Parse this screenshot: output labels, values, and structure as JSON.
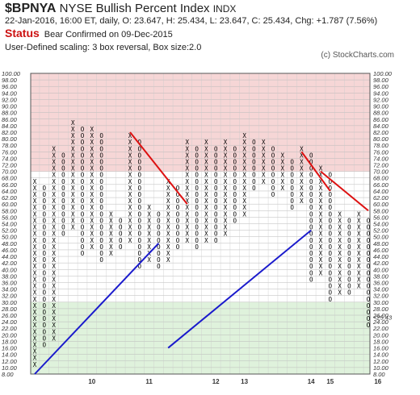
{
  "header": {
    "symbol": "$BPNYA",
    "name": "NYSE Bullish Percent Index",
    "exchange": "INDX",
    "ohlc_line": "22-Jan-2016, 16:00 ET, daily, O: 23.647, H: 25.434, L: 23.647, C: 25.434, Chg: +1.787 (7.56%)",
    "status_label": "Status",
    "status_text": "Bear Confirmed on 09-Dec-2015",
    "scaling_text": "User-Defined scaling: 3 box reversal, Box size:2.0",
    "copyright": "(c) StockCharts.com"
  },
  "colors": {
    "x_mark": "#000000",
    "o_mark": "#000000",
    "month_mark": "#cc1111",
    "upper_zone": "#f6d6d6",
    "lower_zone": "#dff2dc",
    "support_line": "#1a1acc",
    "resistance_line": "#dd1111",
    "last_price_label": "#cc1111"
  },
  "chart_data": {
    "type": "point-and-figure",
    "box_size": 2,
    "reversal_boxes": 3,
    "ylim": [
      8,
      100
    ],
    "y_ticks": [
      8,
      10,
      12,
      14,
      16,
      18,
      20,
      22,
      24,
      26,
      28,
      30,
      32,
      34,
      36,
      38,
      40,
      42,
      44,
      46,
      48,
      50,
      52,
      54,
      56,
      58,
      60,
      62,
      64,
      66,
      68,
      70,
      72,
      74,
      76,
      78,
      80,
      82,
      84,
      86,
      88,
      90,
      92,
      94,
      96,
      98,
      100
    ],
    "y_tick_labels": [
      "8.00",
      "10.00",
      "12.00",
      "14.00",
      "16.00",
      "18.00",
      "20.00",
      "22.00",
      "24.00",
      "26.00",
      "28.00",
      "30.00",
      "32.00",
      "34.00",
      "36.00",
      "38.00",
      "40.00",
      "42.00",
      "44.00",
      "46.00",
      "48.00",
      "50.00",
      "52.00",
      "54.00",
      "56.00",
      "58.00",
      "60.00",
      "62.00",
      "64.00",
      "66.00",
      "68.00",
      "70.00",
      "72.00",
      "74.00",
      "76.00",
      "78.00",
      "80.00",
      "82.00",
      "84.00",
      "86.00",
      "88.00",
      "90.00",
      "92.00",
      "94.00",
      "96.00",
      "98.00",
      "100.00"
    ],
    "bullish_zone_above": 70,
    "bearish_zone_below": 30,
    "x_labels": [
      {
        "label": "10",
        "column": 6
      },
      {
        "label": "11",
        "column": 12
      },
      {
        "label": "12",
        "column": 19
      },
      {
        "label": "13",
        "column": 22
      },
      {
        "label": "14",
        "column": 29
      },
      {
        "label": "15",
        "column": 31
      },
      {
        "label": "16",
        "column": 36
      }
    ],
    "columns": [
      {
        "type": "X",
        "low": 10,
        "high": 66
      },
      {
        "type": "O",
        "low": 16,
        "high": 64
      },
      {
        "type": "X",
        "low": 18,
        "high": 76
      },
      {
        "type": "O",
        "low": 50,
        "high": 74
      },
      {
        "type": "X",
        "low": 52,
        "high": 84
      },
      {
        "type": "O",
        "low": 44,
        "high": 82
      },
      {
        "type": "X",
        "low": 46,
        "high": 82
      },
      {
        "type": "O",
        "low": 42,
        "high": 80
      },
      {
        "type": "X",
        "low": 44,
        "high": 56
      },
      {
        "type": "O",
        "low": 46,
        "high": 54
      },
      {
        "type": "X",
        "low": 48,
        "high": 80
      },
      {
        "type": "O",
        "low": 40,
        "high": 78
      },
      {
        "type": "X",
        "low": 42,
        "high": 58
      },
      {
        "type": "O",
        "low": 40,
        "high": 56
      },
      {
        "type": "X",
        "low": 42,
        "high": 66
      },
      {
        "type": "O",
        "low": 46,
        "high": 64
      },
      {
        "type": "X",
        "low": 48,
        "high": 78
      },
      {
        "type": "O",
        "low": 46,
        "high": 76
      },
      {
        "type": "X",
        "low": 48,
        "high": 78
      },
      {
        "type": "O",
        "low": 48,
        "high": 76
      },
      {
        "type": "X",
        "low": 50,
        "high": 78
      },
      {
        "type": "O",
        "low": 54,
        "high": 76
      },
      {
        "type": "X",
        "low": 56,
        "high": 80
      },
      {
        "type": "O",
        "low": 64,
        "high": 78
      },
      {
        "type": "X",
        "low": 66,
        "high": 78
      },
      {
        "type": "O",
        "low": 62,
        "high": 76
      },
      {
        "type": "X",
        "low": 64,
        "high": 74
      },
      {
        "type": "O",
        "low": 58,
        "high": 72
      },
      {
        "type": "X",
        "low": 60,
        "high": 76
      },
      {
        "type": "O",
        "low": 36,
        "high": 74
      },
      {
        "type": "X",
        "low": 38,
        "high": 70
      },
      {
        "type": "O",
        "low": 30,
        "high": 68
      },
      {
        "type": "X",
        "low": 32,
        "high": 56
      },
      {
        "type": "O",
        "low": 32,
        "high": 54
      },
      {
        "type": "X",
        "low": 34,
        "high": 56
      },
      {
        "type": "O",
        "low": 22,
        "high": 54
      }
    ],
    "trend_lines": [
      {
        "kind": "support",
        "from": [
          0,
          8
        ],
        "to": [
          13,
          48
        ]
      },
      {
        "kind": "support",
        "from": [
          14,
          16
        ],
        "to": [
          29,
          52
        ]
      },
      {
        "kind": "resistance",
        "from": [
          10,
          82
        ],
        "to": [
          16,
          60
        ]
      },
      {
        "kind": "resistance",
        "from": [
          28,
          76
        ],
        "to": [
          31,
          64
        ]
      },
      {
        "kind": "resistance",
        "from": [
          30,
          70
        ],
        "to": [
          35,
          58
        ]
      }
    ],
    "last_price": 25.43,
    "last_price_label": "<25.43"
  }
}
